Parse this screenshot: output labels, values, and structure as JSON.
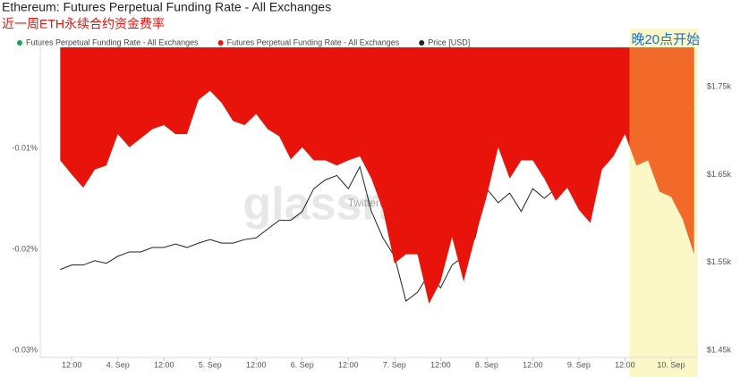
{
  "chart_data": {
    "type": "area",
    "title": "Ethereum: Futures Perpetual Funding Rate - All Exchanges",
    "subtitle": "近一周ETH永续合约资金费率",
    "watermark": "glassnode",
    "credit": "Twitter@Phyrex_Ni",
    "highlight": {
      "from": 157.2,
      "to": 175,
      "label": "晚20点开始",
      "color": "#fbf7c6"
    },
    "x": [
      9,
      12,
      15,
      18,
      21,
      24,
      27,
      30,
      33,
      36,
      39,
      42,
      45,
      48,
      51,
      54,
      57,
      60,
      63,
      66,
      69,
      72,
      75,
      78,
      81,
      84,
      87,
      90,
      93,
      96,
      99,
      102,
      105,
      108,
      111,
      114,
      117,
      120,
      123,
      126,
      129,
      132,
      135,
      138,
      141,
      144,
      147,
      150,
      153,
      156,
      159,
      162,
      165,
      168,
      171,
      174
    ],
    "xlim": [
      6.6,
      175
    ],
    "xticks": [
      {
        "value": 12,
        "label": "12:00"
      },
      {
        "value": 24,
        "label": "4. Sep"
      },
      {
        "value": 36,
        "label": "12:00"
      },
      {
        "value": 48,
        "label": "5. Sep"
      },
      {
        "value": 60,
        "label": "12:00"
      },
      {
        "value": 72,
        "label": "6. Sep"
      },
      {
        "value": 84,
        "label": "12:00"
      },
      {
        "value": 96,
        "label": "7. Sep"
      },
      {
        "value": 108,
        "label": "12:00"
      },
      {
        "value": 120,
        "label": "8. Sep"
      },
      {
        "value": 132,
        "label": "12:00"
      },
      {
        "value": 144,
        "label": "9. Sep"
      },
      {
        "value": 156,
        "label": "12:00"
      },
      {
        "value": 168,
        "label": "10. Sep"
      }
    ],
    "ylim": [
      -0.03,
      0
    ],
    "yticks": [
      {
        "value": -0.01,
        "label": "-0.01%"
      },
      {
        "value": -0.02,
        "label": "-0.02%"
      },
      {
        "value": -0.03,
        "label": "-0.03%"
      }
    ],
    "y2lim": [
      1450,
      1795
    ],
    "y2ticks": [
      {
        "value": 1750,
        "label": "$1.75k"
      },
      {
        "value": 1650,
        "label": "$1.65k"
      },
      {
        "value": 1550,
        "label": "$1.55k"
      },
      {
        "value": 1450,
        "label": "$1.45k"
      }
    ],
    "series": [
      {
        "name": "Futures Perpetual Funding Rate - All Exchanges",
        "color": "#1aa35b",
        "values": [
          null,
          null,
          null,
          null,
          null,
          null,
          null,
          null,
          null,
          null,
          null,
          null,
          null,
          null,
          null,
          null,
          null,
          null,
          null,
          null,
          null,
          null,
          null,
          null,
          null,
          null,
          null,
          null,
          null,
          null,
          null,
          null,
          null,
          null,
          null,
          null,
          null,
          null,
          null,
          null,
          null,
          null,
          null,
          null,
          null,
          null,
          null,
          null,
          null,
          null,
          null,
          null,
          null,
          null,
          null,
          null
        ]
      },
      {
        "name": "Futures Perpetual Funding Rate - All Exchanges",
        "color": "#e8140c",
        "highlight_color": "#f26a2a",
        "values": [
          -0.0112,
          -0.0126,
          -0.0139,
          -0.0121,
          -0.0117,
          -0.0086,
          -0.0099,
          -0.009,
          -0.0081,
          -0.0077,
          -0.0086,
          -0.0086,
          -0.0052,
          -0.0043,
          -0.0055,
          -0.0073,
          -0.0077,
          -0.0066,
          -0.0081,
          -0.0088,
          -0.0111,
          -0.0099,
          -0.0112,
          -0.0112,
          -0.0117,
          -0.0112,
          -0.0108,
          -0.013,
          -0.0161,
          -0.0214,
          -0.0205,
          -0.0205,
          -0.0254,
          -0.0232,
          -0.0188,
          -0.0232,
          -0.0188,
          -0.0148,
          -0.0099,
          -0.013,
          -0.0112,
          -0.0112,
          -0.013,
          -0.0152,
          -0.0139,
          -0.0161,
          -0.0174,
          -0.0121,
          -0.0108,
          -0.0086,
          -0.0117,
          -0.0112,
          -0.0143,
          -0.0148,
          -0.017,
          -0.0205
        ]
      },
      {
        "name": "Price [USD]",
        "color": "#222222",
        "axis": "y2",
        "values": [
          1542,
          1547,
          1547,
          1552,
          1549,
          1557,
          1562,
          1562,
          1567,
          1567,
          1571,
          1567,
          1572,
          1576,
          1572,
          1572,
          1576,
          1578,
          1588,
          1598,
          1598,
          1608,
          1634,
          1644,
          1649,
          1634,
          1659,
          1608,
          1578,
          1557,
          1506,
          1516,
          1537,
          1521,
          1547,
          1557,
          1578,
          1634,
          1618,
          1629,
          1608,
          1634,
          1623,
          1634,
          1639,
          1654,
          1669,
          1680,
          1690,
          1705,
          1710,
          1715,
          1731,
          1731,
          1736,
          1726
        ]
      }
    ]
  }
}
